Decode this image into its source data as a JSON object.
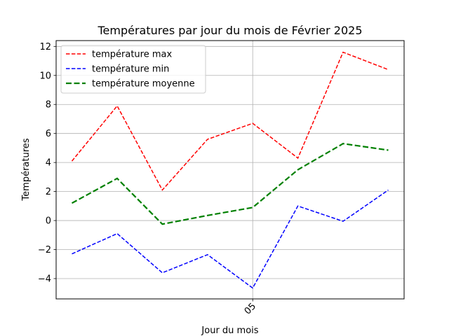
{
  "chart_data": {
    "type": "line",
    "title": "Températures par jour du mois de Février 2025",
    "xlabel": "Jour du mois",
    "ylabel": "Températures",
    "x": [
      1,
      2,
      3,
      4,
      5,
      6,
      7,
      8
    ],
    "xticks": [
      {
        "value": 5,
        "label": "05"
      }
    ],
    "xlim": [
      0.65,
      8.35
    ],
    "ylim": [
      -5.4,
      12.4
    ],
    "yticks": [
      -4,
      -2,
      0,
      2,
      4,
      6,
      8,
      10,
      12
    ],
    "yticks_label": [
      "−4",
      "−2",
      "0",
      "2",
      "4",
      "6",
      "8",
      "10",
      "12"
    ],
    "grid": true,
    "legend_position": "top-left",
    "series": [
      {
        "name": "température max",
        "values": [
          4.1,
          7.9,
          2.1,
          5.6,
          6.7,
          4.3,
          11.6,
          10.4
        ],
        "color": "#ff0000",
        "dash": "dashed",
        "width": 1.5
      },
      {
        "name": "température min",
        "values": [
          -2.3,
          -0.9,
          -3.6,
          -2.35,
          -4.65,
          1.0,
          -0.05,
          2.1
        ],
        "color": "#0000ff",
        "dash": "dashed",
        "width": 1.5
      },
      {
        "name": "température moyenne",
        "values": [
          1.2,
          2.9,
          -0.25,
          0.35,
          0.9,
          3.5,
          5.3,
          4.85
        ],
        "color": "#008000",
        "dash": "dashed",
        "width": 2.2
      }
    ]
  }
}
